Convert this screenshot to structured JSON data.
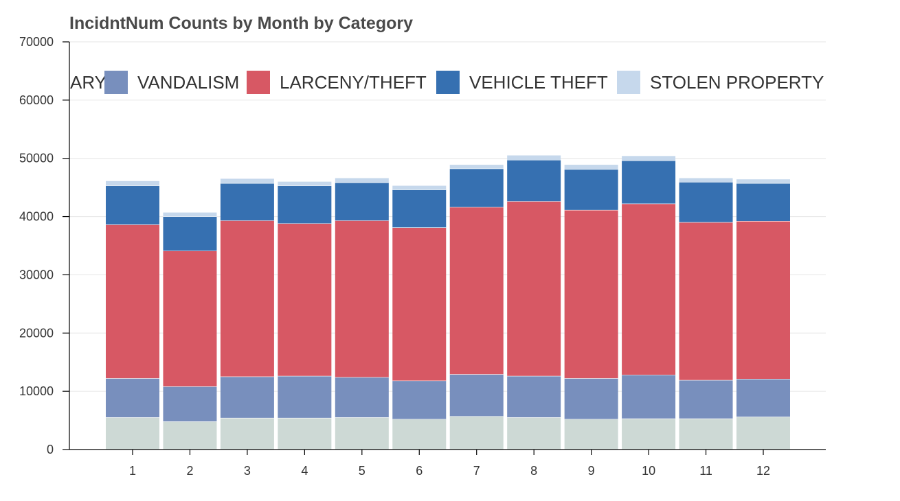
{
  "chart_data": {
    "type": "bar",
    "stacked": true,
    "title": "IncidntNum Counts by Month by Category",
    "xlabel": "",
    "ylabel": "",
    "categories": [
      "1",
      "2",
      "3",
      "4",
      "5",
      "6",
      "7",
      "8",
      "9",
      "10",
      "11",
      "12"
    ],
    "ylim": [
      0,
      70000
    ],
    "yticks": [
      0,
      10000,
      20000,
      30000,
      40000,
      50000,
      60000,
      70000
    ],
    "grid": true,
    "legend_position": "top",
    "legend_visible_text": [
      "ARY",
      "VANDALISM",
      "LARCENY/THEFT",
      "VEHICLE THEFT",
      "STOLEN PROPERTY"
    ],
    "series": [
      {
        "name": "BURGLARY",
        "color": "#cdd9d5",
        "values": [
          5500,
          4800,
          5400,
          5400,
          5500,
          5200,
          5700,
          5500,
          5200,
          5300,
          5300,
          5600
        ]
      },
      {
        "name": "VANDALISM",
        "color": "#788fbd",
        "values": [
          6700,
          6000,
          7100,
          7200,
          6900,
          6600,
          7200,
          7100,
          7000,
          7500,
          6600,
          6500
        ]
      },
      {
        "name": "LARCENY/THEFT",
        "color": "#d75864",
        "values": [
          26400,
          23300,
          26800,
          26200,
          26900,
          26300,
          28700,
          30000,
          28900,
          29400,
          27100,
          27100
        ]
      },
      {
        "name": "VEHICLE THEFT",
        "color": "#3670b1",
        "values": [
          6700,
          5900,
          6400,
          6500,
          6500,
          6500,
          6600,
          7100,
          7000,
          7400,
          6900,
          6500
        ]
      },
      {
        "name": "STOLEN PROPERTY",
        "color": "#c6d8ec",
        "values": [
          800,
          700,
          800,
          700,
          800,
          700,
          700,
          800,
          800,
          800,
          700,
          700
        ]
      }
    ]
  }
}
